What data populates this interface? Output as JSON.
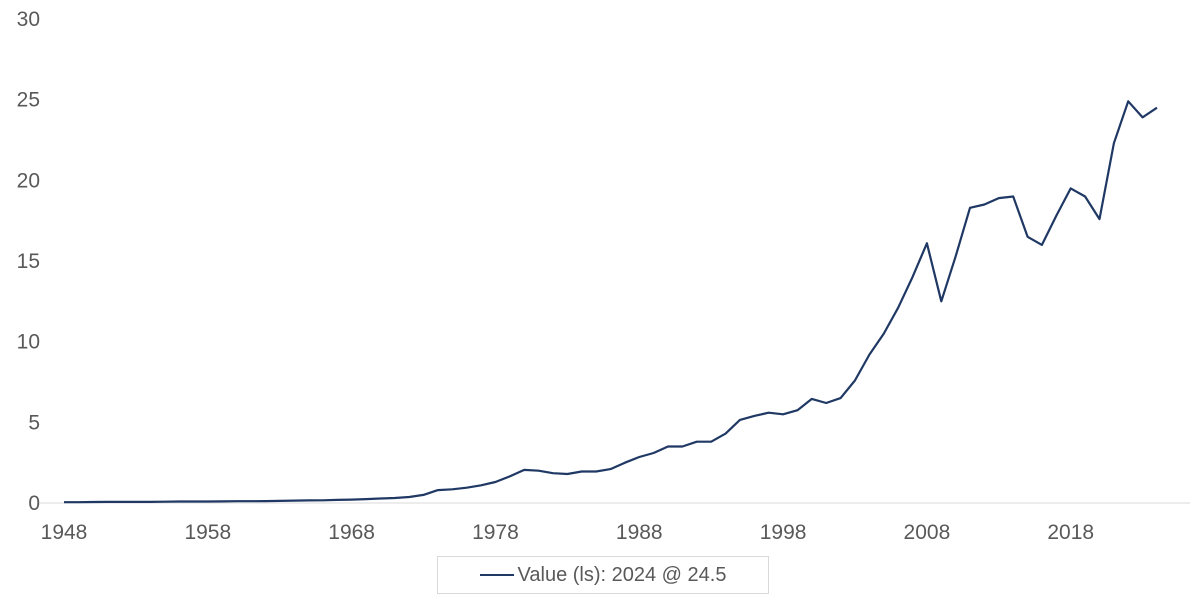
{
  "chart_data": {
    "type": "line",
    "title": "",
    "xlabel": "",
    "ylabel": "",
    "xlim": [
      1948,
      2024
    ],
    "ylim": [
      0,
      30
    ],
    "grid": false,
    "legend_position": "bottom",
    "y_ticks": [
      0,
      5,
      10,
      15,
      20,
      25,
      30
    ],
    "x_ticks": [
      1948,
      1958,
      1968,
      1978,
      1988,
      1998,
      2008,
      2018
    ],
    "series": [
      {
        "name": "Value (ls): 2024 @ 24.5",
        "color": "#1f3864",
        "x": [
          1948,
          1949,
          1950,
          1951,
          1952,
          1953,
          1954,
          1955,
          1956,
          1957,
          1958,
          1959,
          1960,
          1961,
          1962,
          1963,
          1964,
          1965,
          1966,
          1967,
          1968,
          1969,
          1970,
          1971,
          1972,
          1973,
          1974,
          1975,
          1976,
          1977,
          1978,
          1979,
          1980,
          1981,
          1982,
          1983,
          1984,
          1985,
          1986,
          1987,
          1988,
          1989,
          1990,
          1991,
          1992,
          1993,
          1994,
          1995,
          1996,
          1997,
          1998,
          1999,
          2000,
          2001,
          2002,
          2003,
          2004,
          2005,
          2006,
          2007,
          2008,
          2009,
          2010,
          2011,
          2012,
          2013,
          2014,
          2015,
          2016,
          2017,
          2018,
          2019,
          2020,
          2021,
          2022,
          2023,
          2024
        ],
        "values": [
          0.05,
          0.05,
          0.06,
          0.07,
          0.07,
          0.07,
          0.07,
          0.08,
          0.09,
          0.09,
          0.09,
          0.1,
          0.11,
          0.11,
          0.12,
          0.13,
          0.15,
          0.16,
          0.17,
          0.19,
          0.21,
          0.24,
          0.28,
          0.31,
          0.37,
          0.5,
          0.8,
          0.85,
          0.95,
          1.1,
          1.3,
          1.65,
          2.05,
          2.0,
          1.85,
          1.8,
          1.95,
          1.95,
          2.1,
          2.5,
          2.85,
          3.1,
          3.5,
          3.5,
          3.8,
          3.8,
          4.3,
          5.15,
          5.4,
          5.6,
          5.5,
          5.75,
          6.45,
          6.2,
          6.5,
          7.6,
          9.2,
          10.5,
          12.1,
          14.0,
          16.1,
          12.5,
          15.3,
          18.3,
          18.5,
          18.9,
          19.0,
          16.5,
          16.0,
          17.8,
          19.5,
          19.0,
          17.6,
          22.3,
          24.9,
          23.9,
          24.5
        ]
      }
    ]
  },
  "legend": {
    "label": "Value (ls): 2024 @ 24.5"
  }
}
